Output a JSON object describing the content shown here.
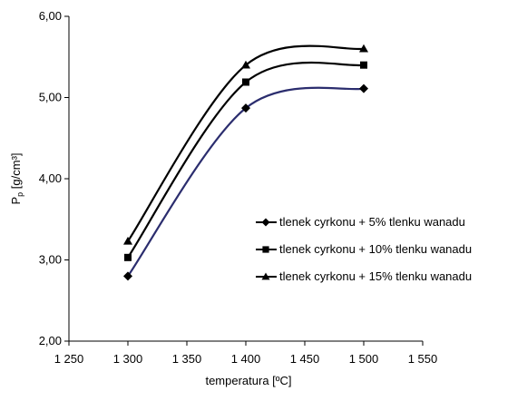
{
  "chart_data": {
    "type": "line",
    "title": "",
    "xlabel": "temperatura [ºC]",
    "ylabel_main": "P",
    "ylabel_sub": "p",
    "ylabel_unit": " [g/cm³]",
    "xlim": [
      1250,
      1550
    ],
    "ylim": [
      2.0,
      6.0
    ],
    "x_ticks": [
      1250,
      1300,
      1350,
      1400,
      1450,
      1500,
      1550
    ],
    "x_tick_labels": [
      "1 250",
      "1 300",
      "1 350",
      "1 400",
      "1 450",
      "1 500",
      "1 550"
    ],
    "y_ticks": [
      2.0,
      3.0,
      4.0,
      5.0,
      6.0
    ],
    "y_tick_labels": [
      "2,00",
      "3,00",
      "4,00",
      "5,00",
      "6,00"
    ],
    "grid": false,
    "legend_position": "right",
    "x": [
      1300,
      1400,
      1500
    ],
    "series": [
      {
        "name": "tlenek cyrkonu + 5% tlenku wanadu",
        "marker": "diamond",
        "color": "#2b2d6e",
        "values": [
          2.8,
          4.87,
          5.11
        ]
      },
      {
        "name": "tlenek cyrkonu + 10% tlenku wanadu",
        "marker": "square",
        "color": "#000000",
        "values": [
          3.03,
          5.19,
          5.4
        ]
      },
      {
        "name": "tlenek cyrkonu + 15% tlenku wanadu",
        "marker": "triangle",
        "color": "#000000",
        "values": [
          3.23,
          5.4,
          5.6
        ]
      }
    ]
  }
}
